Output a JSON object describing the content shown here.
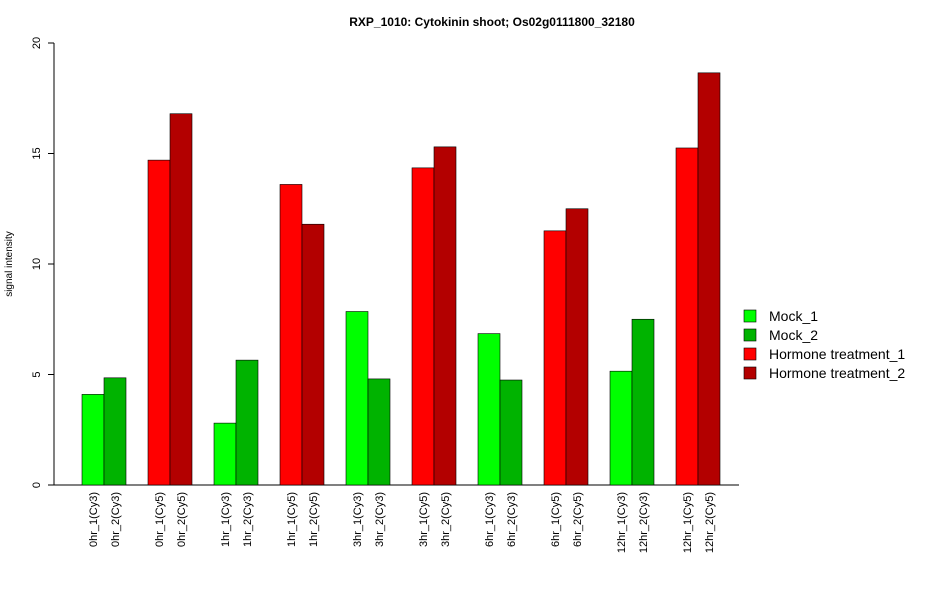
{
  "chart_data": {
    "type": "bar",
    "title": "RXP_1010: Cytokinin shoot; Os02g0111800_32180",
    "xlabel": "",
    "ylabel": "signal intensity",
    "ylim": [
      0,
      20
    ],
    "yticks": [
      0,
      5,
      10,
      15,
      20
    ],
    "grid": false,
    "legend_position": "right",
    "groups": [
      {
        "bars": [
          {
            "label": "0hr_1(Cy3)",
            "value": 4.1,
            "series": "Mock_1"
          },
          {
            "label": "0hr_2(Cy3)",
            "value": 4.85,
            "series": "Mock_2"
          }
        ]
      },
      {
        "bars": [
          {
            "label": "0hr_1(Cy5)",
            "value": 14.7,
            "series": "Hormone treatment_1"
          },
          {
            "label": "0hr_2(Cy5)",
            "value": 16.8,
            "series": "Hormone treatment_2"
          }
        ]
      },
      {
        "bars": [
          {
            "label": "1hr_1(Cy3)",
            "value": 2.8,
            "series": "Mock_1"
          },
          {
            "label": "1hr_2(Cy3)",
            "value": 5.65,
            "series": "Mock_2"
          }
        ]
      },
      {
        "bars": [
          {
            "label": "1hr_1(Cy5)",
            "value": 13.6,
            "series": "Hormone treatment_1"
          },
          {
            "label": "1hr_2(Cy5)",
            "value": 11.8,
            "series": "Hormone treatment_2"
          }
        ]
      },
      {
        "bars": [
          {
            "label": "3hr_1(Cy3)",
            "value": 7.85,
            "series": "Mock_1"
          },
          {
            "label": "3hr_2(Cy3)",
            "value": 4.8,
            "series": "Mock_2"
          }
        ]
      },
      {
        "bars": [
          {
            "label": "3hr_1(Cy5)",
            "value": 14.35,
            "series": "Hormone treatment_1"
          },
          {
            "label": "3hr_2(Cy5)",
            "value": 15.3,
            "series": "Hormone treatment_2"
          }
        ]
      },
      {
        "bars": [
          {
            "label": "6hr_1(Cy3)",
            "value": 6.85,
            "series": "Mock_1"
          },
          {
            "label": "6hr_2(Cy3)",
            "value": 4.75,
            "series": "Mock_2"
          }
        ]
      },
      {
        "bars": [
          {
            "label": "6hr_1(Cy5)",
            "value": 11.5,
            "series": "Hormone treatment_1"
          },
          {
            "label": "6hr_2(Cy5)",
            "value": 12.5,
            "series": "Hormone treatment_2"
          }
        ]
      },
      {
        "bars": [
          {
            "label": "12hr_1(Cy3)",
            "value": 5.15,
            "series": "Mock_1"
          },
          {
            "label": "12hr_2(Cy3)",
            "value": 7.5,
            "series": "Mock_2"
          }
        ]
      },
      {
        "bars": [
          {
            "label": "12hr_1(Cy5)",
            "value": 15.25,
            "series": "Hormone treatment_1"
          },
          {
            "label": "12hr_2(Cy5)",
            "value": 18.65,
            "series": "Hormone treatment_2"
          }
        ]
      }
    ],
    "legend": [
      {
        "name": "Mock_1",
        "color": "#00ff00"
      },
      {
        "name": "Mock_2",
        "color": "#00b300"
      },
      {
        "name": "Hormone treatment_1",
        "color": "#ff0000"
      },
      {
        "name": "Hormone treatment_2",
        "color": "#b30000"
      }
    ]
  }
}
